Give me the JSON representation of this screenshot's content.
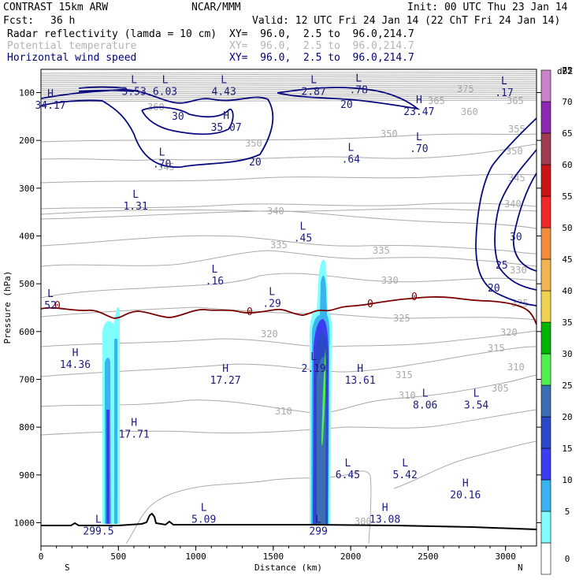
{
  "header": {
    "model": "CONTRAST 15km ARW",
    "org": "NCAR/MMM",
    "init": "Init: 00 UTC Thu 23 Jan 14",
    "fcst_label": "Fcst:",
    "fcst_value": "36 h",
    "valid": "Valid: 12 UTC Fri 24 Jan 14 (22 ChT Fri 24 Jan 14)",
    "fields": [
      {
        "name": "Radar reflectivity (lamda = 10 cm)",
        "xy": "XY=  96.0,  2.5 to  96.0,214.7",
        "color": "#000000"
      },
      {
        "name": "Potential temperature",
        "xy": "XY=  96.0,  2.5 to  96.0,214.7",
        "color": "#b4b4b4"
      },
      {
        "name": "Horizontal wind speed",
        "xy": "XY=  96.0,  2.5 to  96.0,214.7",
        "color": "#00007f"
      }
    ]
  },
  "chart_data": {
    "type": "cross-section",
    "ylabel": "Pressure (hPa)",
    "xlabel": "Distance (km)",
    "xlim": [
      0,
      3200
    ],
    "ylim": [
      1050,
      80
    ],
    "x_ticks": [
      0,
      500,
      1000,
      1500,
      2000,
      2500,
      3000
    ],
    "y_ticks": [
      100,
      200,
      300,
      400,
      500,
      600,
      700,
      800,
      900,
      1000
    ],
    "x_end_labels": [
      "S",
      "N"
    ],
    "isotherms": [
      300,
      305,
      310,
      315,
      320,
      325,
      330,
      335,
      340,
      345,
      350,
      355,
      360,
      365,
      375
    ],
    "wind_speed_contours": [
      20,
      25,
      30
    ],
    "freezing_level_label": "0",
    "colorbar": {
      "unit": "dBZ",
      "levels": [
        0,
        5,
        10,
        15,
        20,
        25,
        30,
        35,
        40,
        45,
        50,
        55,
        60,
        65,
        70,
        75
      ],
      "colors": [
        "#ffffff",
        "#7fffff",
        "#3ab4f0",
        "#3c3cf0",
        "#2a48c8",
        "#3c6eb4",
        "#50f050",
        "#00b400",
        "#f0d250",
        "#f0b450",
        "#f08c3c",
        "#f02828",
        "#c81414",
        "#a03c50",
        "#8c28b4",
        "#c882c8"
      ]
    },
    "annotations": [
      {
        "k": "H",
        "v": "34.17",
        "x": -10,
        "p": 109
      },
      {
        "k": "L",
        "v": "3.53",
        "x": 530,
        "p": 80
      },
      {
        "k": "L",
        "v": "6.03",
        "x": 730,
        "p": 80
      },
      {
        "k": "L",
        "v": "4.43",
        "x": 1110,
        "p": 80
      },
      {
        "k": "L",
        "v": "2.87",
        "x": 1690,
        "p": 80
      },
      {
        "k": "L",
        "v": ".78",
        "x": 1980,
        "p": 77
      },
      {
        "k": "L",
        "v": ".17",
        "x": 2920,
        "p": 83
      },
      {
        "k": "H",
        "v": "35.07",
        "x": 1125,
        "p": 155
      },
      {
        "k": "H",
        "v": "23.47",
        "x": 2370,
        "p": 122
      },
      {
        "k": "L",
        "v": ".70",
        "x": 710,
        "p": 232
      },
      {
        "k": "L",
        "v": ".64",
        "x": 1930,
        "p": 222
      },
      {
        "k": "L",
        "v": ".70",
        "x": 2370,
        "p": 200
      },
      {
        "k": "L",
        "v": "1.31",
        "x": 540,
        "p": 320
      },
      {
        "k": "L",
        "v": ".45",
        "x": 1620,
        "p": 387
      },
      {
        "k": "L",
        "v": ".16",
        "x": 1050,
        "p": 477
      },
      {
        "k": "L",
        "v": ".29",
        "x": 1420,
        "p": 524
      },
      {
        "k": "L",
        "v": "52",
        "x": -10,
        "p": 528
      },
      {
        "k": "H",
        "v": "14.36",
        "x": 150,
        "p": 651
      },
      {
        "k": "L",
        "v": "2.19",
        "x": 1690,
        "p": 660
      },
      {
        "k": "H",
        "v": "17.27",
        "x": 1120,
        "p": 684
      },
      {
        "k": "H",
        "v": "13.61",
        "x": 1990,
        "p": 684
      },
      {
        "k": "L",
        "v": "8.06",
        "x": 2410,
        "p": 736
      },
      {
        "k": "L",
        "v": "3.54",
        "x": 2740,
        "p": 736
      },
      {
        "k": "H",
        "v": "17.71",
        "x": 530,
        "p": 797
      },
      {
        "k": "L",
        "v": "6.45",
        "x": 1910,
        "p": 882
      },
      {
        "k": "L",
        "v": "5.42",
        "x": 2280,
        "p": 882
      },
      {
        "k": "H",
        "v": "20.16",
        "x": 2670,
        "p": 924
      },
      {
        "k": "L",
        "v": "5.09",
        "x": 980,
        "p": 975
      },
      {
        "k": "H",
        "v": "13.08",
        "x": 2150,
        "p": 975
      },
      {
        "k": "L",
        "v": "299.5",
        "x": 300,
        "p": 1000
      },
      {
        "k": "L",
        "v": "299",
        "x": 1720,
        "p": 1000
      }
    ]
  }
}
